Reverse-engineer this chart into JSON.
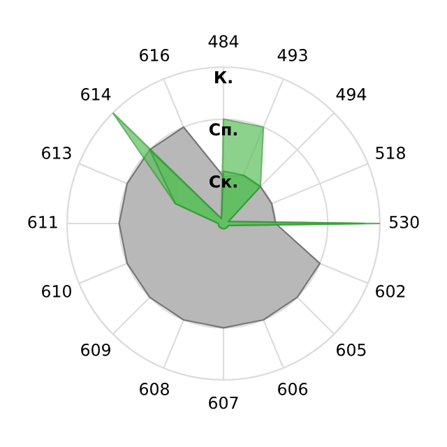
{
  "chart_data": {
    "type": "radar",
    "relative": false,
    "categories": [
      "484",
      "493",
      "494",
      "518",
      "530",
      "602",
      "605",
      "606",
      "607",
      "608",
      "609",
      "610",
      "611",
      "613",
      "614",
      "616"
    ],
    "ylim": [
      0,
      3
    ],
    "yticks": [
      {
        "value": 1,
        "label": "Ск."
      },
      {
        "value": 2,
        "label": "Сп."
      },
      {
        "value": 3,
        "label": "К."
      }
    ],
    "grid": true,
    "series": [
      {
        "color": "#b8b8b8",
        "values": [
          0.9,
          1.0,
          1.0,
          1.0,
          1.0,
          2.0,
          2.0,
          2.0,
          2.0,
          2.0,
          2.0,
          2.0,
          2.0,
          2.0,
          2.0,
          2.0
        ]
      },
      {
        "color": "#5cbf5c",
        "values": [
          2.0,
          2.0,
          1.0,
          0.1,
          3.0,
          0.1,
          0.1,
          0.1,
          0.1,
          0.1,
          0.1,
          0.1,
          0.1,
          1.0,
          3.0,
          0.1
        ]
      },
      {
        "color": "#5cbf5c",
        "values": [
          1.0,
          1.0,
          1.0,
          0.1,
          2.7,
          0.1,
          0.1,
          0.1,
          0.1,
          0.1,
          0.1,
          0.1,
          0.1,
          1.0,
          2.0,
          0.1
        ]
      }
    ]
  }
}
